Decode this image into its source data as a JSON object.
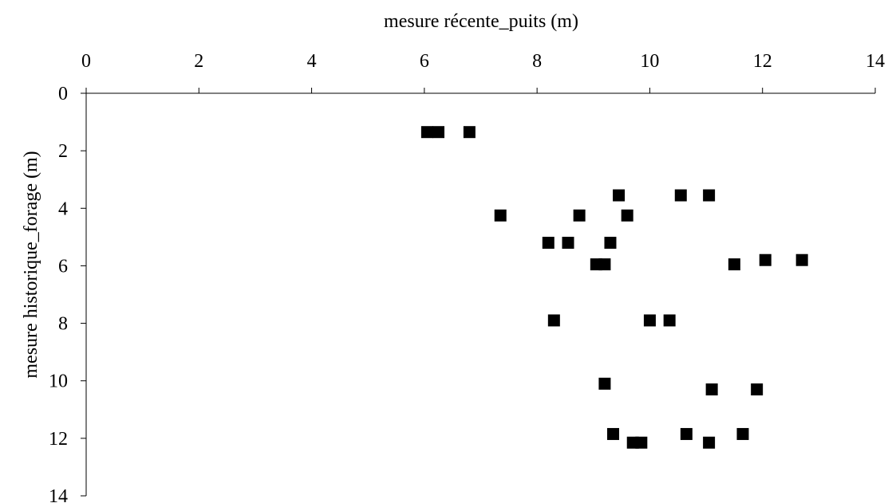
{
  "chart_data": {
    "type": "scatter",
    "xlabel": "mesure récente_puits (m)",
    "ylabel": "mesure historique_forage (m)",
    "xlim": [
      0,
      14
    ],
    "ylim": [
      0,
      14
    ],
    "x_ticks": [
      0,
      2,
      4,
      6,
      8,
      10,
      12,
      14
    ],
    "y_ticks": [
      0,
      2,
      4,
      6,
      8,
      10,
      12,
      14
    ],
    "x_axis_position": "top",
    "y_axis_inverted": true,
    "grid": false,
    "legend": "none",
    "marker": "square",
    "marker_color": "#000000",
    "series": [
      {
        "points": [
          {
            "x": 6.05,
            "y": 1.35
          },
          {
            "x": 6.25,
            "y": 1.35
          },
          {
            "x": 6.8,
            "y": 1.35
          },
          {
            "x": 9.45,
            "y": 3.55
          },
          {
            "x": 10.55,
            "y": 3.55
          },
          {
            "x": 11.05,
            "y": 3.55
          },
          {
            "x": 7.35,
            "y": 4.25
          },
          {
            "x": 8.75,
            "y": 4.25
          },
          {
            "x": 9.6,
            "y": 4.25
          },
          {
            "x": 8.2,
            "y": 5.2
          },
          {
            "x": 8.55,
            "y": 5.2
          },
          {
            "x": 9.3,
            "y": 5.2
          },
          {
            "x": 9.05,
            "y": 5.95
          },
          {
            "x": 9.2,
            "y": 5.95
          },
          {
            "x": 11.5,
            "y": 5.95
          },
          {
            "x": 12.05,
            "y": 5.8
          },
          {
            "x": 12.7,
            "y": 5.8
          },
          {
            "x": 8.3,
            "y": 7.9
          },
          {
            "x": 10.0,
            "y": 7.9
          },
          {
            "x": 10.35,
            "y": 7.9
          },
          {
            "x": 9.2,
            "y": 10.1
          },
          {
            "x": 11.1,
            "y": 10.3
          },
          {
            "x": 11.9,
            "y": 10.3
          },
          {
            "x": 9.35,
            "y": 11.85
          },
          {
            "x": 9.7,
            "y": 12.15
          },
          {
            "x": 9.85,
            "y": 12.15
          },
          {
            "x": 10.65,
            "y": 11.85
          },
          {
            "x": 11.05,
            "y": 12.15
          },
          {
            "x": 11.65,
            "y": 11.85
          }
        ]
      }
    ]
  }
}
